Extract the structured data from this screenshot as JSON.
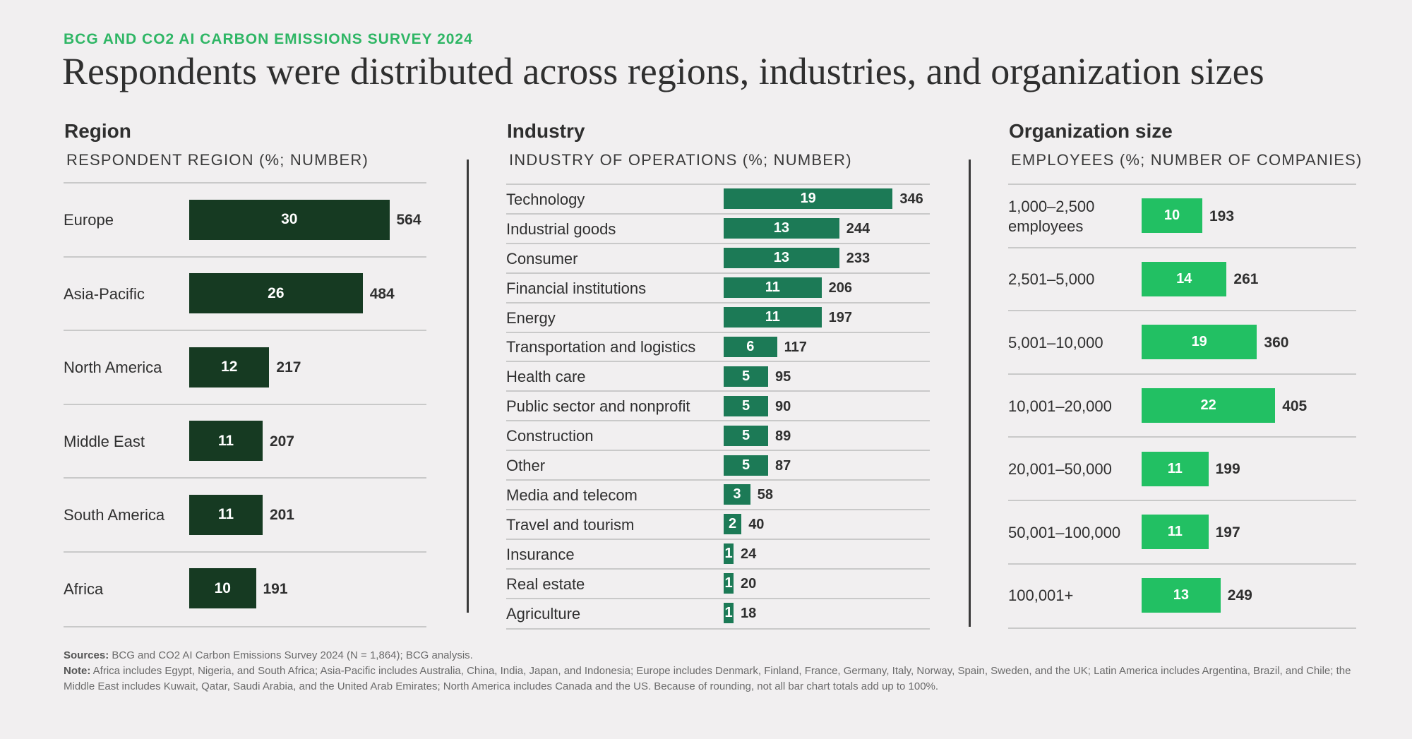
{
  "kicker": "BCG AND CO2 AI CARBON EMISSIONS SURVEY 2024",
  "title": "Respondents were distributed across regions, industries, and organization sizes",
  "colors": {
    "region_bar": "#163a22",
    "industry_bar": "#1c7a56",
    "size_bar": "#22c063",
    "kicker": "#2fb665"
  },
  "chart_data": [
    {
      "type": "bar",
      "orientation": "horizontal",
      "title": "Region",
      "subtitle": "RESPONDENT REGION (%; NUMBER)",
      "categories": [
        "Europe",
        "Asia-Pacific",
        "North America",
        "Middle East",
        "South America",
        "Africa"
      ],
      "values": [
        30,
        26,
        12,
        11,
        11,
        10
      ],
      "counts": [
        564,
        484,
        217,
        207,
        201,
        191
      ]
    },
    {
      "type": "bar",
      "orientation": "horizontal",
      "title": "Industry",
      "subtitle": "INDUSTRY OF OPERATIONS (%; NUMBER)",
      "categories": [
        "Technology",
        "Industrial goods",
        "Consumer",
        "Financial institutions",
        "Energy",
        "Transportation and logistics",
        "Health care",
        "Public sector and nonprofit",
        "Construction",
        "Other",
        "Media and telecom",
        "Travel and tourism",
        "Insurance",
        "Real estate",
        "Agriculture"
      ],
      "values": [
        19,
        13,
        13,
        11,
        11,
        6,
        5,
        5,
        5,
        5,
        3,
        2,
        1,
        1,
        1
      ],
      "counts": [
        346,
        244,
        233,
        206,
        197,
        117,
        95,
        90,
        89,
        87,
        58,
        40,
        24,
        20,
        18
      ]
    },
    {
      "type": "bar",
      "orientation": "horizontal",
      "title": "Organization size",
      "subtitle": "EMPLOYEES (%; NUMBER OF COMPANIES)",
      "categories": [
        "1,000–2,500\nemployees",
        "2,501–5,000",
        "5,001–10,000",
        "10,001–20,000",
        "20,001–50,000",
        "50,001–100,000",
        "100,001+"
      ],
      "values": [
        10,
        14,
        19,
        22,
        11,
        11,
        13
      ],
      "counts": [
        193,
        261,
        360,
        405,
        199,
        197,
        249
      ]
    }
  ],
  "footer": {
    "sources_label": "Sources:",
    "sources_text": " BCG and CO2 AI Carbon Emissions Survey 2024 (N = 1,864); BCG analysis.",
    "note_label": "Note:",
    "note_text": " Africa includes Egypt, Nigeria, and South Africa; Asia-Pacific includes Australia, China, India, Japan, and Indonesia; Europe includes Denmark, Finland, France, Germany, Italy, Norway, Spain, Sweden, and the UK; Latin America includes Argentina, Brazil, and Chile; the Middle East includes Kuwait, Qatar, Saudi Arabia, and the United Arab Emirates; North America includes Canada and the US. Because of rounding, not all bar chart totals add up to 100%."
  }
}
